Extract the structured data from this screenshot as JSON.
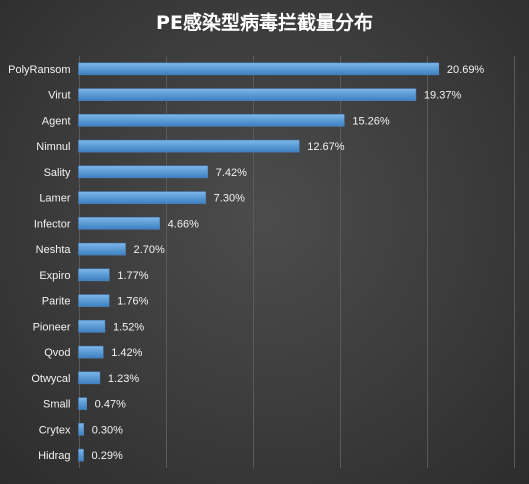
{
  "chart_data": {
    "type": "bar",
    "orientation": "horizontal",
    "title": "PE感染型病毒拦截量分布",
    "categories": [
      "PolyRansom",
      "Virut",
      "Agent",
      "Nimnul",
      "Sality",
      "Lamer",
      "Infector",
      "Neshta",
      "Expiro",
      "Parite",
      "Pioneer",
      "Qvod",
      "Otwycal",
      "Small",
      "Crytex",
      "Hidrag"
    ],
    "values": [
      20.69,
      19.37,
      15.26,
      12.67,
      7.42,
      7.3,
      4.66,
      2.7,
      1.77,
      1.76,
      1.52,
      1.42,
      1.23,
      0.47,
      0.3,
      0.29
    ],
    "value_labels": [
      "20.69%",
      "19.37%",
      "15.26%",
      "12.67%",
      "7.42%",
      "7.30%",
      "4.66%",
      "2.70%",
      "1.77%",
      "1.76%",
      "1.52%",
      "1.42%",
      "1.23%",
      "0.47%",
      "0.30%",
      "0.29%"
    ],
    "xlim": [
      0,
      25
    ],
    "x_gridlines": [
      0,
      5,
      10,
      15,
      20,
      25
    ],
    "grid": true,
    "legend": "none",
    "bar_color": "#5b9bd5",
    "background_color": "#3a3a3a",
    "text_color": "#ffffff"
  }
}
